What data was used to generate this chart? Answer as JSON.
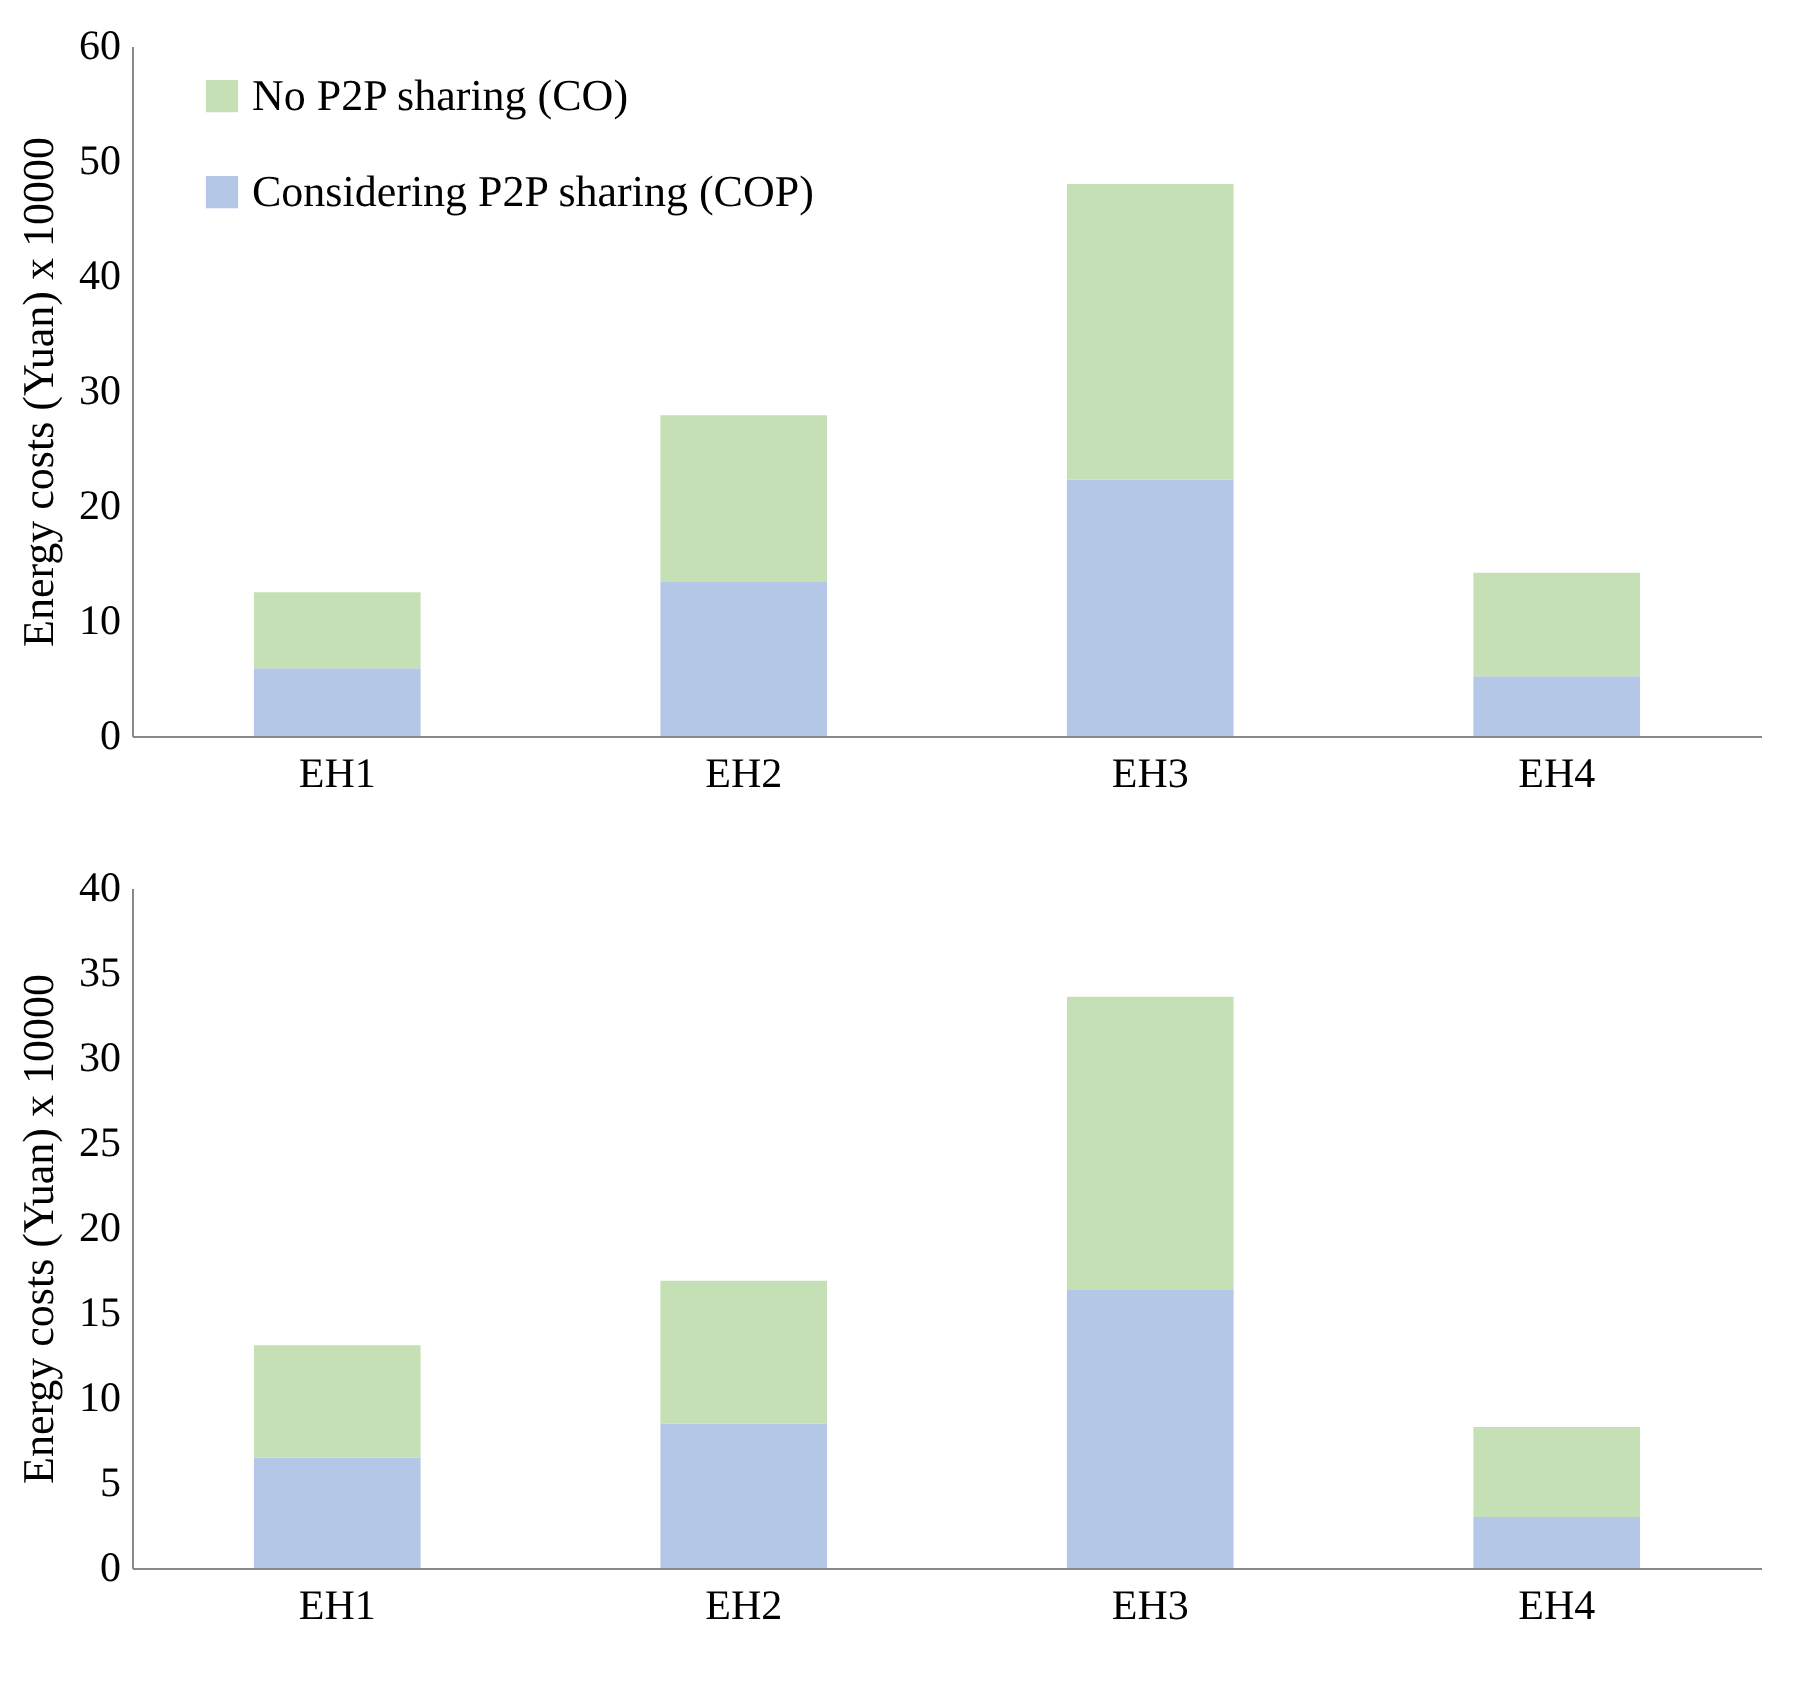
{
  "chart_data": [
    {
      "type": "bar",
      "stacked": true,
      "categories": [
        "EH1",
        "EH2",
        "EH3",
        "EH4"
      ],
      "ylabel": "Energy costs (Yuan)   x 10000",
      "ylim": [
        0,
        60
      ],
      "yticks": [
        0,
        10,
        20,
        30,
        40,
        50,
        60
      ],
      "legend": "top left",
      "series": [
        {
          "name": "Considering P2P sharing (COP)",
          "color": "#b4c7e7",
          "values": [
            5.9,
            13.4,
            22.3,
            5.2
          ]
        },
        {
          "name": "No P2P sharing (CO)",
          "color": "#c5e0b4",
          "values": [
            6.6,
            14.5,
            25.7,
            9.0
          ]
        }
      ]
    },
    {
      "type": "bar",
      "stacked": true,
      "categories": [
        "EH1",
        "EH2",
        "EH3",
        "EH4"
      ],
      "ylabel": "Energy costs (Yuan)   x 10000",
      "ylim": [
        0,
        40
      ],
      "yticks": [
        0,
        5,
        10,
        15,
        20,
        25,
        30,
        35,
        40
      ],
      "legend": false,
      "series": [
        {
          "color": "#b4c7e7",
          "values": [
            6.5,
            8.5,
            16.4,
            3.0
          ]
        },
        {
          "color": "#c5e0b4",
          "values": [
            6.6,
            8.4,
            17.2,
            5.3
          ]
        }
      ]
    }
  ]
}
